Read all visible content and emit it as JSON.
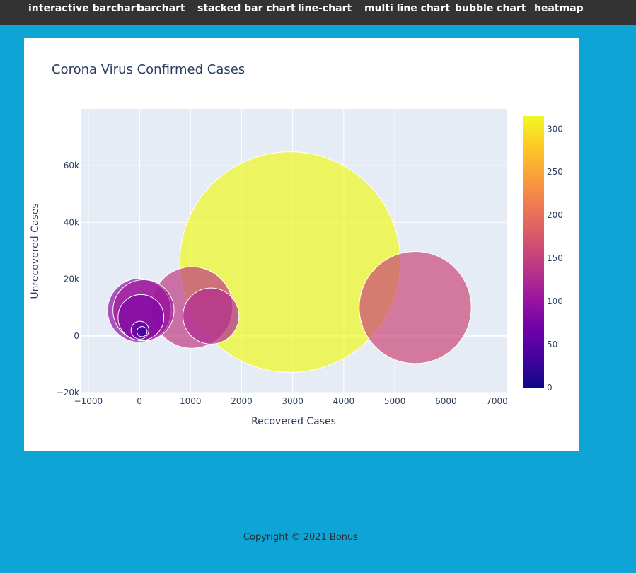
{
  "nav": {
    "items": [
      {
        "label": "interactive barchart"
      },
      {
        "label": "barchart"
      },
      {
        "label": "stacked bar chart"
      },
      {
        "label": "line-chart"
      },
      {
        "label": "multi line chart"
      },
      {
        "label": "bubble chart"
      },
      {
        "label": "heatmap"
      }
    ]
  },
  "chart_data": {
    "type": "scatter",
    "subtype": "bubble",
    "title": "Corona Virus Confirmed Cases",
    "xlabel": "Recovered Cases",
    "ylabel": "Unrecovered Cases",
    "xlim": [
      -1150,
      7200
    ],
    "ylim": [
      -20000,
      80000
    ],
    "xticks": [
      -1000,
      0,
      1000,
      2000,
      3000,
      4000,
      5000,
      6000,
      7000
    ],
    "xtick_labels": [
      "−1000",
      "0",
      "1000",
      "2000",
      "3000",
      "4000",
      "5000",
      "6000",
      "7000"
    ],
    "yticks": [
      -20000,
      0,
      20000,
      40000,
      60000
    ],
    "ytick_labels": [
      "−20k",
      "0",
      "20k",
      "40k",
      "60k"
    ],
    "grid": true,
    "colorscale": "Plasma",
    "colorbar": {
      "min": 0,
      "max": 315,
      "ticks": [
        0,
        50,
        100,
        150,
        200,
        250,
        300
      ]
    },
    "points": [
      {
        "x": 2950,
        "y": 26000,
        "size": 4.33,
        "color": 315
      },
      {
        "x": 5400,
        "y": 10000,
        "size": 2.2,
        "color": 160
      },
      {
        "x": 1030,
        "y": 10000,
        "size": 1.6,
        "color": 145
      },
      {
        "x": 1400,
        "y": 7000,
        "size": 1.1,
        "color": 125
      },
      {
        "x": 80,
        "y": 9000,
        "size": 1.2,
        "color": 110
      },
      {
        "x": 0,
        "y": 9000,
        "size": 1.25,
        "color": 95
      },
      {
        "x": 30,
        "y": 6500,
        "size": 0.9,
        "color": 80
      },
      {
        "x": 10,
        "y": 2000,
        "size": 0.35,
        "color": 55
      },
      {
        "x": 50,
        "y": 1500,
        "size": 0.2,
        "color": 30
      }
    ]
  },
  "footer": {
    "text": "Copyright © 2021 Bonus"
  }
}
